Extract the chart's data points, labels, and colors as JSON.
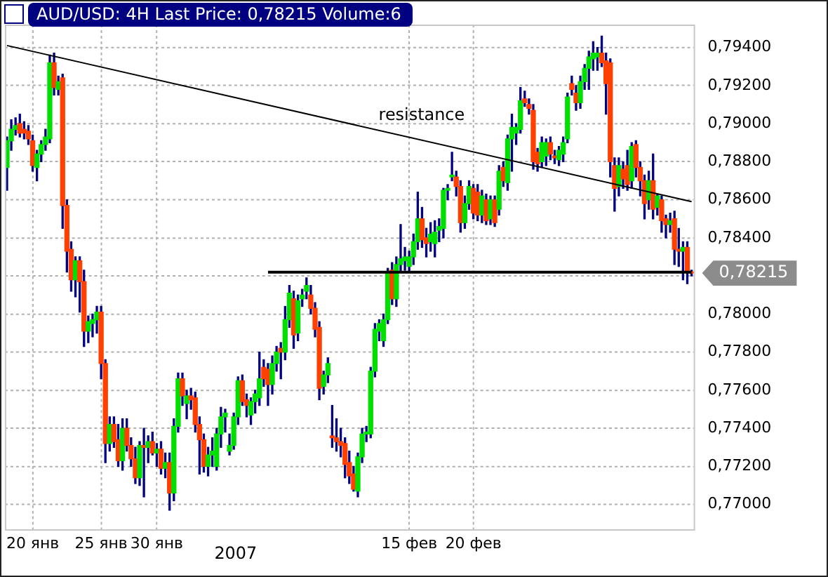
{
  "chart_data": {
    "type": "candlestick",
    "title": "AUD/USD: 4H Last Price: 0,78215 Volume:6",
    "categories": [
      null,
      null,
      null,
      null,
      null,
      null,
      "20 янв",
      null,
      null,
      null,
      null,
      null,
      null,
      null,
      null,
      null,
      null,
      null,
      null,
      null,
      null,
      null,
      "25 янв",
      null,
      null,
      null,
      null,
      null,
      null,
      null,
      null,
      null,
      null,
      null,
      null,
      "30 янв",
      null,
      null,
      null,
      null,
      null,
      null,
      null,
      null,
      null,
      null,
      null,
      null,
      null,
      null,
      null,
      null,
      null,
      null,
      null,
      null,
      null,
      null,
      null,
      null,
      null,
      null,
      null,
      null,
      null,
      null,
      null,
      null,
      null,
      null,
      null,
      null,
      null,
      null,
      null,
      null,
      null,
      null,
      null,
      null,
      null,
      null,
      null,
      null,
      null,
      null,
      null,
      null,
      null,
      null,
      null,
      null,
      null,
      null,
      "15 фев",
      null,
      null,
      null,
      null,
      null,
      null,
      null,
      null,
      null,
      null,
      null,
      null,
      null,
      null,
      "20 фев",
      null,
      null,
      null,
      null,
      null,
      null,
      null,
      null,
      null,
      null,
      null,
      null,
      null,
      null,
      null,
      null,
      null,
      null,
      null,
      null,
      null,
      null,
      null,
      null,
      null,
      null,
      null,
      null,
      null,
      null,
      null,
      null,
      null,
      null,
      null,
      null,
      null,
      null,
      null,
      null,
      null,
      null,
      null,
      null,
      null,
      null,
      null,
      null,
      null,
      null,
      null
    ],
    "ohlc": [
      [
        0.7877,
        0.7893,
        0.7865,
        0.7891
      ],
      [
        0.7891,
        0.7902,
        0.7886,
        0.7897
      ],
      [
        0.7897,
        0.7903,
        0.7894,
        0.7899
      ],
      [
        0.79,
        0.7905,
        0.7893,
        0.7895
      ],
      [
        0.7897,
        0.7901,
        0.7892,
        0.7895
      ],
      [
        0.7896,
        0.7899,
        0.7889,
        0.7892
      ],
      [
        0.7891,
        0.7894,
        0.7875,
        0.7878
      ],
      [
        0.7877,
        0.7886,
        0.787,
        0.7884
      ],
      [
        0.7884,
        0.7891,
        0.788,
        0.7889
      ],
      [
        0.7889,
        0.7897,
        0.7886,
        0.7893
      ],
      [
        0.7892,
        0.7936,
        0.789,
        0.7932
      ],
      [
        0.7932,
        0.7937,
        0.7915,
        0.7919
      ],
      [
        0.7918,
        0.7925,
        0.7915,
        0.7922
      ],
      [
        0.7924,
        0.7926,
        0.7845,
        0.7857
      ],
      [
        0.7857,
        0.786,
        0.7822,
        0.7833
      ],
      [
        0.7834,
        0.7838,
        0.7812,
        0.7818
      ],
      [
        0.7818,
        0.783,
        0.7809,
        0.7828
      ],
      [
        0.7828,
        0.783,
        0.7801,
        0.7817
      ],
      [
        0.7817,
        0.7823,
        0.7783,
        0.7791
      ],
      [
        0.7791,
        0.7799,
        0.7785,
        0.7796
      ],
      [
        0.7795,
        0.78,
        0.7788,
        0.7797
      ],
      [
        0.7797,
        0.7804,
        0.779,
        0.7801
      ],
      [
        0.7801,
        0.7804,
        0.7766,
        0.7774
      ],
      [
        0.7774,
        0.7776,
        0.7722,
        0.7732
      ],
      [
        0.7732,
        0.7746,
        0.7728,
        0.7742
      ],
      [
        0.7742,
        0.7746,
        0.773,
        0.7733
      ],
      [
        0.7734,
        0.7742,
        0.772,
        0.7723
      ],
      [
        0.7723,
        0.7745,
        0.7718,
        0.774
      ],
      [
        0.774,
        0.7745,
        0.7728,
        0.7731
      ],
      [
        0.7731,
        0.7735,
        0.772,
        0.7724
      ],
      [
        0.7724,
        0.773,
        0.7711,
        0.7714
      ],
      [
        0.7714,
        0.7733,
        0.771,
        0.7731
      ],
      [
        0.7731,
        0.774,
        0.7704,
        0.773
      ],
      [
        0.773,
        0.7736,
        0.7722,
        0.7733
      ],
      [
        0.7733,
        0.7738,
        0.7726,
        0.7727
      ],
      [
        0.7727,
        0.7732,
        0.772,
        0.7729
      ],
      [
        0.7729,
        0.7733,
        0.7716,
        0.7719
      ],
      [
        0.7719,
        0.7727,
        0.7714,
        0.7722
      ],
      [
        0.7722,
        0.7727,
        0.7697,
        0.7706
      ],
      [
        0.7706,
        0.7745,
        0.7702,
        0.7741
      ],
      [
        0.7741,
        0.7769,
        0.7738,
        0.7766
      ],
      [
        0.7766,
        0.7769,
        0.7752,
        0.7757
      ],
      [
        0.7753,
        0.776,
        0.7745,
        0.7757
      ],
      [
        0.7757,
        0.7761,
        0.775,
        0.7755
      ],
      [
        0.7756,
        0.7759,
        0.7738,
        0.7742
      ],
      [
        0.7742,
        0.7746,
        0.7716,
        0.7734
      ],
      [
        0.7734,
        0.7737,
        0.7717,
        0.772
      ],
      [
        0.772,
        0.773,
        0.7715,
        0.7726
      ],
      [
        0.7726,
        0.7735,
        0.772,
        0.7728
      ],
      [
        0.772,
        0.774,
        0.7718,
        0.7737
      ],
      [
        0.7737,
        0.7751,
        0.773,
        0.7746
      ],
      [
        0.7746,
        0.775,
        0.7738,
        0.7748
      ],
      [
        0.7728,
        0.7737,
        0.7726,
        0.7731
      ],
      [
        0.7731,
        0.7748,
        0.7729,
        0.7746
      ],
      [
        0.7746,
        0.7767,
        0.7742,
        0.7765
      ],
      [
        0.7765,
        0.7768,
        0.7752,
        0.7754
      ],
      [
        0.7755,
        0.7758,
        0.7746,
        0.7752
      ],
      [
        0.7747,
        0.7756,
        0.7742,
        0.7754
      ],
      [
        0.7754,
        0.776,
        0.7748,
        0.7758
      ],
      [
        0.7756,
        0.778,
        0.7752,
        0.7766
      ],
      [
        0.7772,
        0.7776,
        0.7762,
        0.7766
      ],
      [
        0.7771,
        0.7774,
        0.7752,
        0.7763
      ],
      [
        0.7763,
        0.7778,
        0.7758,
        0.7774
      ],
      [
        0.7774,
        0.7783,
        0.777,
        0.778
      ],
      [
        0.7782,
        0.7785,
        0.7766,
        0.778
      ],
      [
        0.778,
        0.7804,
        0.7776,
        0.7797
      ],
      [
        0.7797,
        0.7815,
        0.7793,
        0.7811
      ],
      [
        0.7808,
        0.7812,
        0.7782,
        0.7789
      ],
      [
        0.779,
        0.781,
        0.7786,
        0.7807
      ],
      [
        0.7808,
        0.7813,
        0.7804,
        0.781
      ],
      [
        0.7812,
        0.7819,
        0.7808,
        0.7815
      ],
      [
        0.781,
        0.7815,
        0.78,
        0.7803
      ],
      [
        0.7803,
        0.7806,
        0.7788,
        0.7792
      ],
      [
        0.7793,
        0.7796,
        0.7755,
        0.7761
      ],
      [
        0.7762,
        0.777,
        0.7758,
        0.7768
      ],
      [
        0.7768,
        0.7777,
        0.7764,
        0.7774
      ],
      [
        0.7736,
        0.7752,
        0.773,
        0.7735
      ],
      [
        0.7735,
        0.7745,
        0.7728,
        0.7733
      ],
      [
        0.7733,
        0.774,
        0.7725,
        0.7731
      ],
      [
        0.7732,
        0.7735,
        0.7714,
        0.7721
      ],
      [
        0.7722,
        0.7728,
        0.7711,
        0.7715
      ],
      [
        0.7716,
        0.772,
        0.7707,
        0.7708
      ],
      [
        0.7707,
        0.7727,
        0.7704,
        0.7725
      ],
      [
        0.7725,
        0.774,
        0.7722,
        0.7737
      ],
      [
        0.7737,
        0.7741,
        0.7733,
        0.7738
      ],
      [
        0.7737,
        0.7772,
        0.7735,
        0.777
      ],
      [
        0.777,
        0.7795,
        0.7767,
        0.7792
      ],
      [
        0.7791,
        0.7797,
        0.7786,
        0.7795
      ],
      [
        0.7786,
        0.78,
        0.7783,
        0.7797
      ],
      [
        0.7797,
        0.7824,
        0.7795,
        0.7822
      ],
      [
        0.7823,
        0.7827,
        0.7805,
        0.7808
      ],
      [
        0.7808,
        0.783,
        0.7804,
        0.7826
      ],
      [
        0.7826,
        0.7847,
        0.7822,
        0.7829
      ],
      [
        0.7828,
        0.7835,
        0.7823,
        0.783
      ],
      [
        0.7825,
        0.7833,
        0.7822,
        0.783
      ],
      [
        0.783,
        0.7842,
        0.7826,
        0.7838
      ],
      [
        0.7838,
        0.7864,
        0.7834,
        0.785
      ],
      [
        0.785,
        0.7856,
        0.7835,
        0.7839
      ],
      [
        0.784,
        0.7845,
        0.783,
        0.7837
      ],
      [
        0.7838,
        0.7848,
        0.7833,
        0.7842
      ],
      [
        0.7837,
        0.7849,
        0.783,
        0.7843
      ],
      [
        0.7844,
        0.785,
        0.7838,
        0.7846
      ],
      [
        0.7845,
        0.7866,
        0.784,
        0.7865
      ],
      [
        0.7865,
        0.7868,
        0.786,
        0.7866
      ],
      [
        0.7872,
        0.7885,
        0.787,
        0.7873
      ],
      [
        0.7872,
        0.7875,
        0.7862,
        0.7867
      ],
      [
        0.7867,
        0.787,
        0.7843,
        0.7848
      ],
      [
        0.7848,
        0.7862,
        0.7845,
        0.7858
      ],
      [
        0.7858,
        0.787,
        0.7855,
        0.7867
      ],
      [
        0.7866,
        0.7868,
        0.785,
        0.7853
      ],
      [
        0.7864,
        0.7868,
        0.7849,
        0.7852
      ],
      [
        0.7852,
        0.7865,
        0.7848,
        0.7862
      ],
      [
        0.786,
        0.7863,
        0.7847,
        0.7849
      ],
      [
        0.785,
        0.7862,
        0.7847,
        0.786
      ],
      [
        0.786,
        0.7862,
        0.7846,
        0.7848
      ],
      [
        0.7855,
        0.7878,
        0.7852,
        0.7875
      ],
      [
        0.7877,
        0.788,
        0.7867,
        0.787
      ],
      [
        0.7869,
        0.7894,
        0.7865,
        0.7892
      ],
      [
        0.7892,
        0.7905,
        0.7875,
        0.7898
      ],
      [
        0.7895,
        0.79,
        0.7889,
        0.7898
      ],
      [
        0.7897,
        0.7919,
        0.7895,
        0.7912
      ],
      [
        0.7913,
        0.7917,
        0.7909,
        0.7911
      ],
      [
        0.791,
        0.7913,
        0.7905,
        0.7908
      ],
      [
        0.7907,
        0.791,
        0.7876,
        0.788
      ],
      [
        0.7885,
        0.7887,
        0.7875,
        0.7879
      ],
      [
        0.788,
        0.7893,
        0.7877,
        0.789
      ],
      [
        0.7883,
        0.7892,
        0.7878,
        0.789
      ],
      [
        0.789,
        0.7893,
        0.7881,
        0.7884
      ],
      [
        0.7883,
        0.7886,
        0.7879,
        0.7882
      ],
      [
        0.7881,
        0.7888,
        0.7878,
        0.7886
      ],
      [
        0.7884,
        0.7893,
        0.788,
        0.789
      ],
      [
        0.7892,
        0.7916,
        0.789,
        0.7914
      ],
      [
        0.7921,
        0.7925,
        0.7915,
        0.7918
      ],
      [
        0.7916,
        0.792,
        0.7907,
        0.7911
      ],
      [
        0.7911,
        0.7925,
        0.7908,
        0.7922
      ],
      [
        0.7922,
        0.7931,
        0.7918,
        0.7929
      ],
      [
        0.7929,
        0.7938,
        0.7918,
        0.7935
      ],
      [
        0.7934,
        0.7943,
        0.7928,
        0.7937
      ],
      [
        0.7935,
        0.794,
        0.7928,
        0.7937
      ],
      [
        0.7937,
        0.7946,
        0.793,
        0.7932
      ],
      [
        0.7933,
        0.7937,
        0.7905,
        0.7921
      ],
      [
        0.7932,
        0.7934,
        0.7872,
        0.788
      ],
      [
        0.7878,
        0.7882,
        0.7854,
        0.7866
      ],
      [
        0.7867,
        0.7882,
        0.7862,
        0.7878
      ],
      [
        0.7876,
        0.788,
        0.7866,
        0.7871
      ],
      [
        0.7878,
        0.7886,
        0.7865,
        0.7868
      ],
      [
        0.787,
        0.789,
        0.7866,
        0.7888
      ],
      [
        0.7889,
        0.7891,
        0.7872,
        0.7877
      ],
      [
        0.7877,
        0.788,
        0.7862,
        0.787
      ],
      [
        0.787,
        0.7873,
        0.785,
        0.7858
      ],
      [
        0.786,
        0.7875,
        0.7855,
        0.787
      ],
      [
        0.787,
        0.7884,
        0.785,
        0.7855
      ],
      [
        0.7856,
        0.7863,
        0.7852,
        0.7862
      ],
      [
        0.786,
        0.7862,
        0.7843,
        0.7849
      ],
      [
        0.785,
        0.7852,
        0.784,
        0.7847
      ],
      [
        0.7847,
        0.7853,
        0.7843,
        0.7849
      ],
      [
        0.785,
        0.7854,
        0.7826,
        0.7834
      ],
      [
        0.7834,
        0.7845,
        0.7825,
        0.7833
      ],
      [
        0.7833,
        0.7838,
        0.7818,
        0.7835
      ],
      [
        0.7835,
        0.7838,
        0.7816,
        0.7822
      ],
      [
        0.7822,
        0.7823,
        0.782,
        0.78215
      ]
    ],
    "series": [
      {
        "type": "line",
        "color": "#000000",
        "line_style": "solid",
        "values": [
          0.7941,
          null,
          null,
          null,
          null,
          null,
          null,
          null,
          null,
          null,
          null,
          null,
          null,
          null,
          null,
          null,
          null,
          null,
          null,
          null,
          null,
          null,
          null,
          null,
          null,
          null,
          null,
          null,
          null,
          null,
          null,
          null,
          null,
          null,
          null,
          null,
          null,
          null,
          null,
          null,
          null,
          null,
          null,
          null,
          null,
          null,
          null,
          null,
          null,
          null,
          null,
          null,
          null,
          null,
          null,
          null,
          null,
          null,
          null,
          null,
          null,
          null,
          null,
          null,
          null,
          null,
          null,
          null,
          null,
          null,
          null,
          null,
          null,
          null,
          null,
          null,
          null,
          null,
          null,
          null,
          null,
          null,
          null,
          null,
          null,
          null,
          null,
          null,
          null,
          null,
          null,
          null,
          null,
          null,
          null,
          null,
          null,
          null,
          null,
          null,
          null,
          null,
          null,
          null,
          null,
          null,
          null,
          null,
          null,
          null,
          null,
          null,
          null,
          null,
          null,
          null,
          null,
          null,
          null,
          null,
          null,
          null,
          null,
          null,
          null,
          null,
          null,
          null,
          null,
          null,
          null,
          null,
          null,
          null,
          null,
          null,
          null,
          null,
          null,
          null,
          null,
          null,
          null,
          null,
          null,
          null,
          null,
          null,
          null,
          null,
          null,
          null,
          null,
          null,
          null,
          null,
          null,
          null,
          null,
          null,
          0.7859
        ]
      },
      {
        "type": "line",
        "color": "#000000",
        "line_style": "solid",
        "values": [
          null,
          null,
          null,
          null,
          null,
          null,
          null,
          null,
          null,
          null,
          null,
          null,
          null,
          null,
          null,
          null,
          null,
          null,
          null,
          null,
          null,
          null,
          null,
          null,
          null,
          null,
          null,
          null,
          null,
          null,
          null,
          null,
          null,
          null,
          null,
          null,
          null,
          null,
          null,
          null,
          null,
          null,
          null,
          null,
          null,
          null,
          null,
          null,
          null,
          null,
          null,
          null,
          null,
          null,
          null,
          null,
          null,
          null,
          null,
          null,
          null,
          0.7822,
          null,
          null,
          null,
          null,
          null,
          null,
          null,
          null,
          null,
          null,
          null,
          null,
          null,
          null,
          null,
          null,
          null,
          null,
          null,
          null,
          null,
          null,
          null,
          null,
          null,
          null,
          null,
          null,
          null,
          null,
          null,
          null,
          null,
          null,
          null,
          null,
          null,
          null,
          null,
          null,
          null,
          null,
          null,
          null,
          null,
          null,
          null,
          null,
          null,
          null,
          null,
          null,
          null,
          null,
          null,
          null,
          null,
          null,
          null,
          null,
          null,
          null,
          null,
          null,
          null,
          null,
          null,
          null,
          null,
          null,
          null,
          null,
          null,
          null,
          null,
          null,
          null,
          null,
          null,
          null,
          null,
          null,
          null,
          null,
          null,
          null,
          null,
          null,
          null,
          null,
          null,
          null,
          null,
          null,
          null,
          null,
          null,
          null,
          0.7822
        ]
      }
    ],
    "annotations": [
      "resistance",
      "2007",
      "0,78215"
    ],
    "ylim": [
      0.7687,
      0.7952
    ],
    "yticks": [
      {
        "value": 0.77,
        "label": "0,77000"
      },
      {
        "value": 0.772,
        "label": "0,77200"
      },
      {
        "value": 0.774,
        "label": "0,77400"
      },
      {
        "value": 0.776,
        "label": "0,77600"
      },
      {
        "value": 0.778,
        "label": "0,77800"
      },
      {
        "value": 0.78,
        "label": "0,78000"
      },
      {
        "value": 0.782,
        "label": null
      },
      {
        "value": 0.784,
        "label": "0,78400"
      },
      {
        "value": 0.786,
        "label": "0,78600"
      },
      {
        "value": 0.788,
        "label": "0,78800"
      },
      {
        "value": 0.79,
        "label": "0,79000"
      },
      {
        "value": 0.792,
        "label": "0,79200"
      },
      {
        "value": 0.794,
        "label": "0,79400"
      }
    ],
    "grid": true,
    "legend": false
  }
}
